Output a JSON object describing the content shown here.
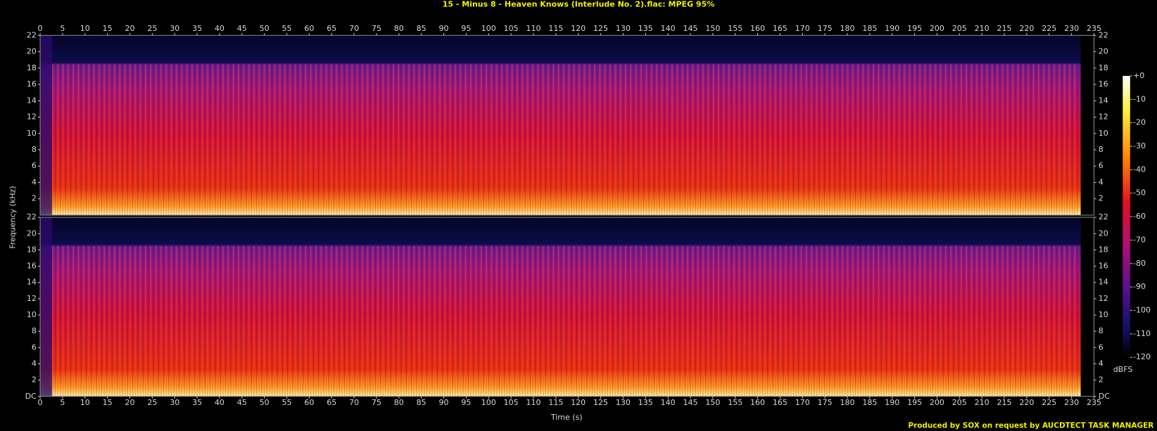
{
  "chart_data": [
    {
      "type": "spectrogram",
      "title": "15 - Minus 8 - Heaven Knows (Interlude No. 2).flac: MPEG 95%",
      "ylabel": "Frequency (kHz)",
      "xlim": [
        0,
        235
      ],
      "xticks": [
        0,
        5,
        10,
        15,
        20,
        25,
        30,
        35,
        40,
        45,
        50,
        55,
        60,
        65,
        70,
        75,
        80,
        85,
        90,
        95,
        100,
        105,
        110,
        115,
        120,
        125,
        130,
        135,
        140,
        145,
        150,
        155,
        160,
        165,
        170,
        175,
        180,
        185,
        190,
        195,
        200,
        205,
        210,
        215,
        220,
        225,
        230,
        235
      ],
      "ylim": [
        0,
        22
      ],
      "yticks": [
        2,
        4,
        6,
        8,
        10,
        12,
        14,
        16,
        18,
        20,
        22
      ]
    },
    {
      "type": "spectrogram",
      "xlabel": "Time (s)",
      "xlim": [
        0,
        235
      ],
      "xticks": [
        0,
        5,
        10,
        15,
        20,
        25,
        30,
        35,
        40,
        45,
        50,
        55,
        60,
        65,
        70,
        75,
        80,
        85,
        90,
        95,
        100,
        105,
        110,
        115,
        120,
        125,
        130,
        135,
        140,
        145,
        150,
        155,
        160,
        165,
        170,
        175,
        180,
        185,
        190,
        195,
        200,
        205,
        210,
        215,
        220,
        225,
        230,
        235
      ],
      "ylim": [
        0,
        22
      ],
      "yticks": [
        {
          "value": 0,
          "label": "DC"
        },
        2,
        4,
        6,
        8,
        10,
        12,
        14,
        16,
        18,
        20,
        22
      ]
    }
  ],
  "colorbar": {
    "label": "dBFS",
    "lim": [
      -120,
      0
    ],
    "ticks": [
      {
        "value": 0,
        "label": "+0"
      },
      -10,
      -20,
      -30,
      -40,
      -50,
      -60,
      -70,
      -80,
      -90,
      -100,
      -110,
      -120
    ]
  },
  "footer": "Produced by SOX on request by AUCDTECT TASK MANAGER"
}
